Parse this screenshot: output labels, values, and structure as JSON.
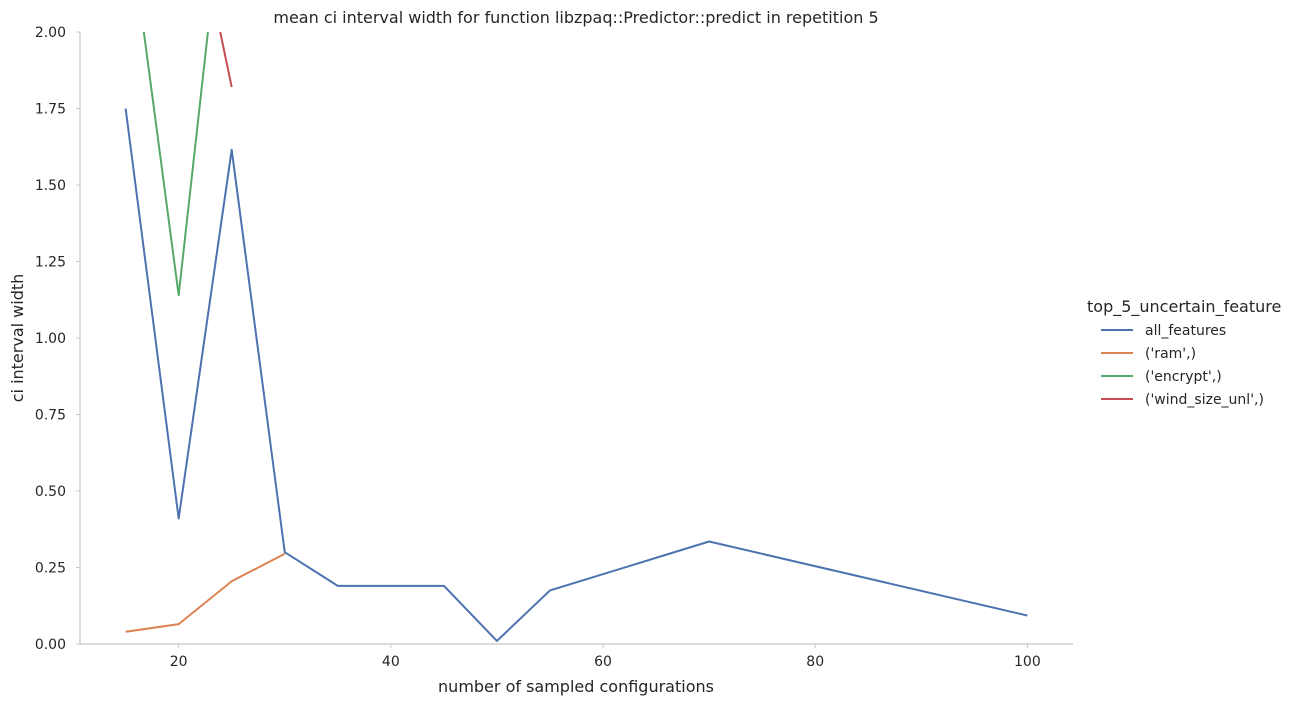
{
  "chart_data": {
    "type": "line",
    "title": "mean ci interval width for function libzpaq::Predictor::predict in repetition 5",
    "xlabel": "number of sampled configurations",
    "ylabel": "ci interval width",
    "xlim": [
      10.7,
      104.3
    ],
    "ylim": [
      0,
      2
    ],
    "xticks": [
      20,
      40,
      60,
      80,
      100
    ],
    "yticks": [
      0.0,
      0.25,
      0.5,
      0.75,
      1.0,
      1.25,
      1.5,
      1.75,
      2.0
    ],
    "ytick_labels": [
      "0.00",
      "0.25",
      "0.50",
      "0.75",
      "1.00",
      "1.25",
      "1.50",
      "1.75",
      "2.00"
    ],
    "grid": false,
    "legend": {
      "title": "top_5_uncertain_feature",
      "placement": "right"
    },
    "series": [
      {
        "name": "all_features",
        "color": "#4c72b0",
        "x": [
          15,
          20,
          25,
          30,
          35,
          45,
          50,
          55,
          70,
          100
        ],
        "y": [
          1.75,
          0.41,
          1.615,
          0.3,
          0.19,
          0.19,
          0.01,
          0.175,
          0.335,
          0.093
        ]
      },
      {
        "name": "('ram',)",
        "color": "#dd8452",
        "x": [
          15,
          20,
          25,
          30
        ],
        "y": [
          0.04,
          0.065,
          0.205,
          0.295
        ]
      },
      {
        "name": "('encrypt',)",
        "color": "#55a868",
        "x": [
          15,
          20,
          25
        ],
        "y": [
          2.45,
          1.14,
          2.7
        ]
      },
      {
        "name": "('wind_size_unl',)",
        "color": "#c44e52",
        "x": [
          20,
          25
        ],
        "y": [
          2.65,
          1.82
        ]
      }
    ]
  }
}
